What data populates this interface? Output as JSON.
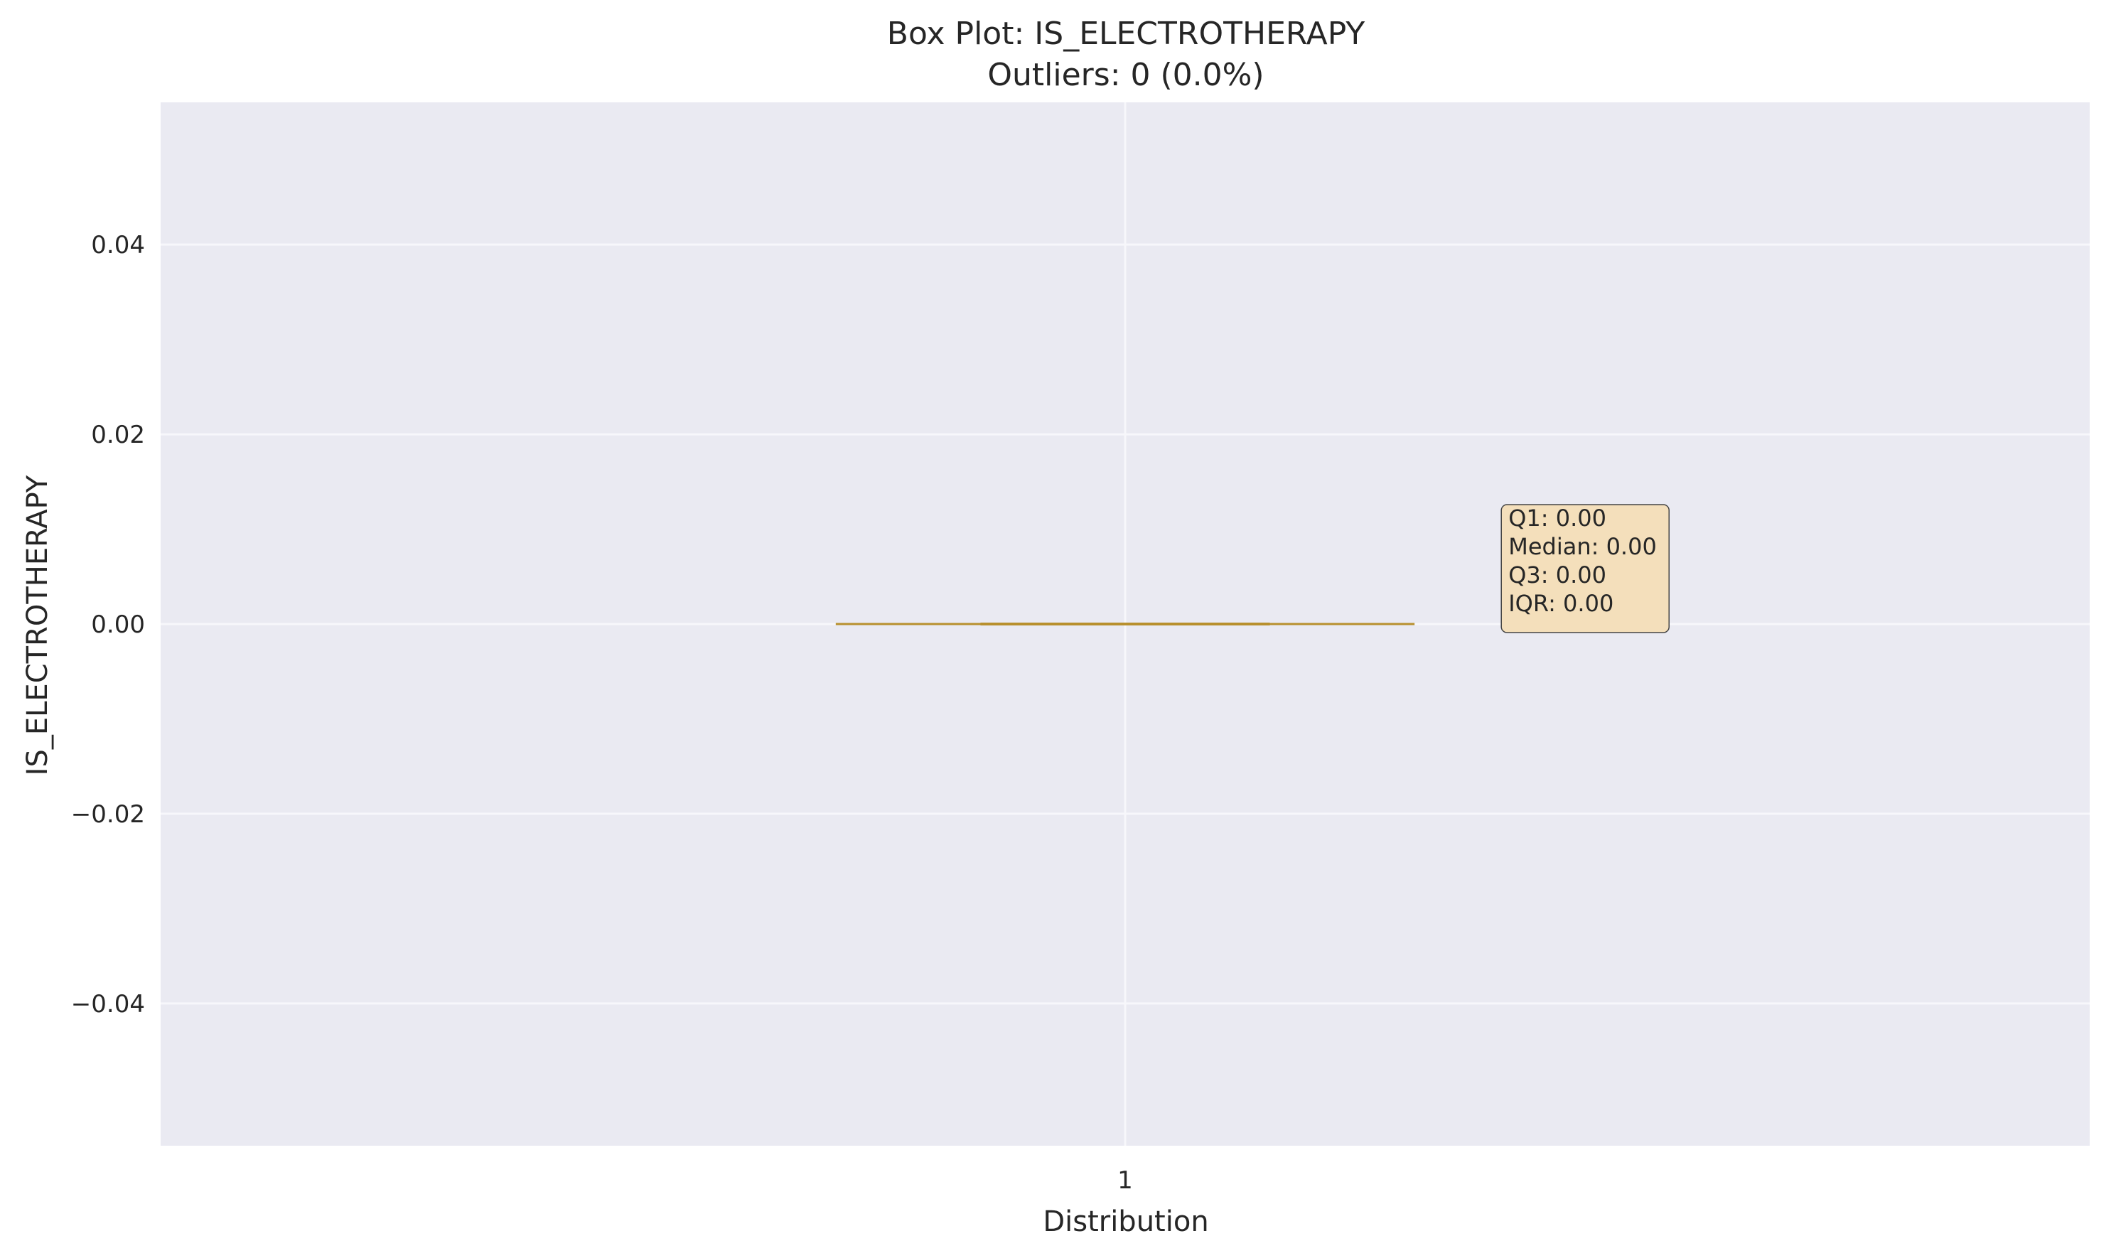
{
  "chart_data": {
    "type": "box",
    "title": "Box Plot: IS_ELECTROTHERAPY",
    "subtitle": "Outliers: 0 (0.0%)",
    "xlabel": "Distribution",
    "ylabel": "IS_ELECTROTHERAPY",
    "categories": [
      "1"
    ],
    "x_range": [
      0.5,
      1.5
    ],
    "ylim": [
      -0.055,
      0.055
    ],
    "y_ticks": [
      0.04,
      0.02,
      0.0,
      -0.02,
      -0.04
    ],
    "y_tick_labels": [
      "0.04",
      "0.02",
      "0.00",
      "−0.02",
      "−0.04"
    ],
    "grid": true,
    "boxes": [
      {
        "category": "1",
        "whisker_low": 0.0,
        "q1": 0.0,
        "median": 0.0,
        "q3": 0.0,
        "whisker_high": 0.0,
        "outliers": []
      }
    ],
    "annotation": {
      "lines": [
        "Q1: 0.00",
        "Median: 0.00",
        "Q3: 0.00",
        "IQR: 0.00"
      ]
    },
    "colors": {
      "plot_background": "#eaeaf2",
      "grid": "#f7f7fb",
      "median_line": "#b8902e",
      "cap_line": "#b8902e",
      "annotation_fill": "#f4dfbb",
      "annotation_border": "#444444"
    }
  }
}
